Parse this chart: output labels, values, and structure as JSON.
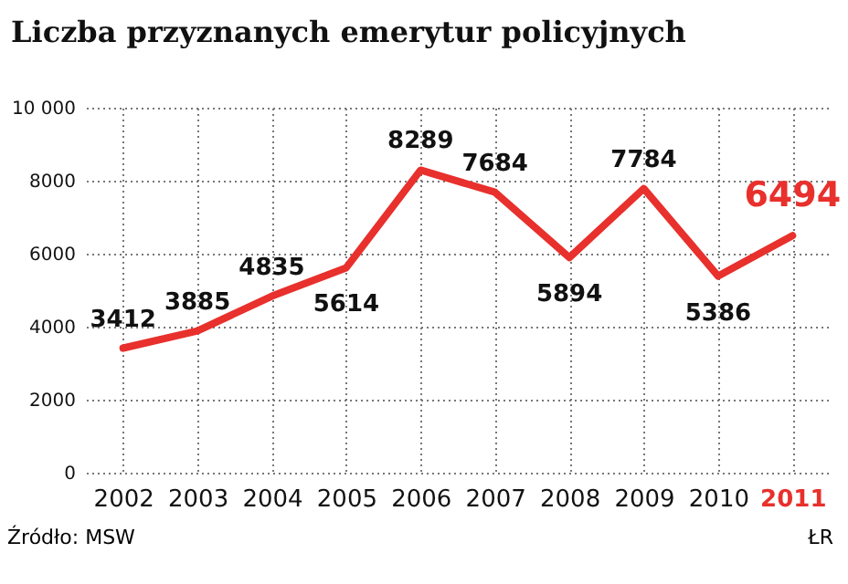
{
  "chart_data": {
    "type": "line",
    "title": "Liczba  przyznanych emerytur policyjnych",
    "categories": [
      "2002",
      "2003",
      "2004",
      "2005",
      "2006",
      "2007",
      "2008",
      "2009",
      "2010",
      "2011"
    ],
    "series": [
      {
        "color": "#e8302c",
        "values": [
          3412,
          3885,
          4835,
          5614,
          8289,
          7684,
          5894,
          7784,
          5386,
          6494
        ]
      }
    ],
    "ylim": [
      0,
      10000
    ],
    "yticks": [
      0,
      2000,
      4000,
      6000,
      8000,
      {
        "value": 10000,
        "label": "10 000"
      }
    ],
    "grid": true,
    "data_labels": true,
    "marker": "none",
    "line_style": "solid",
    "annotations": [
      "Źródło: MSW",
      "ŁR"
    ]
  }
}
